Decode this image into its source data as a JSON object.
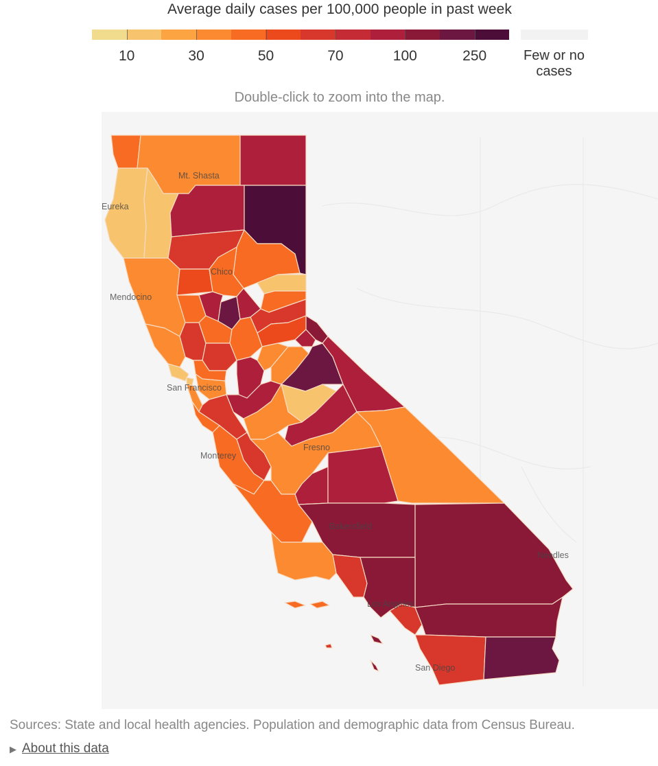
{
  "legend": {
    "title": "Average daily cases per 100,000 people in past week",
    "scale_colors": [
      "#f1dc8e",
      "#f7c36c",
      "#fba441",
      "#fc8a30",
      "#f86b22",
      "#ec4a1c",
      "#d8372c",
      "#c52b35",
      "#ae1f3c",
      "#8a1938",
      "#6c1642",
      "#4c0e38"
    ],
    "ticks": [
      {
        "label": "10",
        "value": 10
      },
      {
        "label": "30",
        "value": 30
      },
      {
        "label": "50",
        "value": 50
      },
      {
        "label": "70",
        "value": 70
      },
      {
        "label": "100",
        "value": 100
      },
      {
        "label": "250",
        "value": 250
      }
    ],
    "no_cases_label": "Few or no cases",
    "no_cases_color": "#f2f2f2"
  },
  "zoom_hint": "Double-click to zoom into the map.",
  "map": {
    "region": "California",
    "background_color": "#f5f5f5",
    "border_color": "#f5dcc0",
    "cities": [
      "Mt. Shasta",
      "Eureka",
      "Chico",
      "Mendocino",
      "San Francisco",
      "Monterey",
      "Fresno",
      "Bakersfield",
      "Needles",
      "Los Angeles",
      "San Diego"
    ]
  },
  "footer": {
    "sources": "Sources: State and local health agencies. Population and demographic data from Census Bureau.",
    "about": "About this data"
  }
}
